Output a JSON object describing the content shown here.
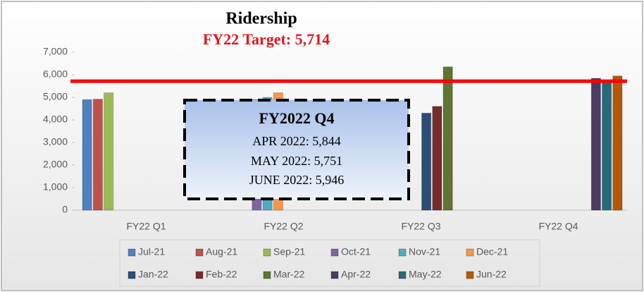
{
  "chart_data": {
    "type": "bar",
    "title": "Ridership",
    "subtitle": "FY22 Target: 5,714",
    "target": 5714,
    "target_color": "#ff0000",
    "categories": [
      "FY22 Q1",
      "FY22 Q2",
      "FY22 Q3",
      "FY22 Q4"
    ],
    "series": [
      {
        "name": "Jul-21",
        "color": "#4f81bd",
        "values": [
          4900,
          null,
          null,
          null
        ]
      },
      {
        "name": "Aug-21",
        "color": "#c0504d",
        "values": [
          4920,
          null,
          null,
          null
        ]
      },
      {
        "name": "Sep-21",
        "color": "#9bbb59",
        "values": [
          5200,
          null,
          null,
          null
        ]
      },
      {
        "name": "Oct-21",
        "color": "#8064a2",
        "values": [
          null,
          4900,
          null,
          null
        ]
      },
      {
        "name": "Nov-21",
        "color": "#4bacc6",
        "values": [
          null,
          5000,
          null,
          null
        ]
      },
      {
        "name": "Dec-21",
        "color": "#f79646",
        "values": [
          null,
          5200,
          null,
          null
        ]
      },
      {
        "name": "Jan-22",
        "color": "#2c4d75",
        "values": [
          null,
          null,
          4300,
          null
        ]
      },
      {
        "name": "Feb-22",
        "color": "#772c2a",
        "values": [
          null,
          null,
          4600,
          null
        ]
      },
      {
        "name": "Mar-22",
        "color": "#5f7530",
        "values": [
          null,
          null,
          6350,
          null
        ]
      },
      {
        "name": "Apr-22",
        "color": "#4d3b62",
        "values": [
          null,
          null,
          null,
          5844
        ]
      },
      {
        "name": "May-22",
        "color": "#276a7c",
        "values": [
          null,
          null,
          null,
          5751
        ]
      },
      {
        "name": "Jun-22",
        "color": "#b65708",
        "values": [
          null,
          null,
          null,
          5946
        ]
      }
    ],
    "ylim": [
      0,
      7000
    ],
    "yticks": [
      0,
      {
        "value": 1000,
        "label": "1,000"
      },
      {
        "value": 2000,
        "label": "2,000"
      },
      {
        "value": 3000,
        "label": "3,000"
      },
      {
        "value": 4000,
        "label": "4,000"
      },
      {
        "value": 5000,
        "label": "5,000"
      },
      {
        "value": 6000,
        "label": "6,000"
      },
      {
        "value": 7000,
        "label": "7,000"
      }
    ],
    "grid": false,
    "legend": "bottom",
    "annotation": {
      "title": "FY2022 Q4",
      "lines": [
        "APR 2022: 5,844",
        "MAY 2022: 5,751",
        "JUNE 2022: 5,946"
      ]
    }
  }
}
